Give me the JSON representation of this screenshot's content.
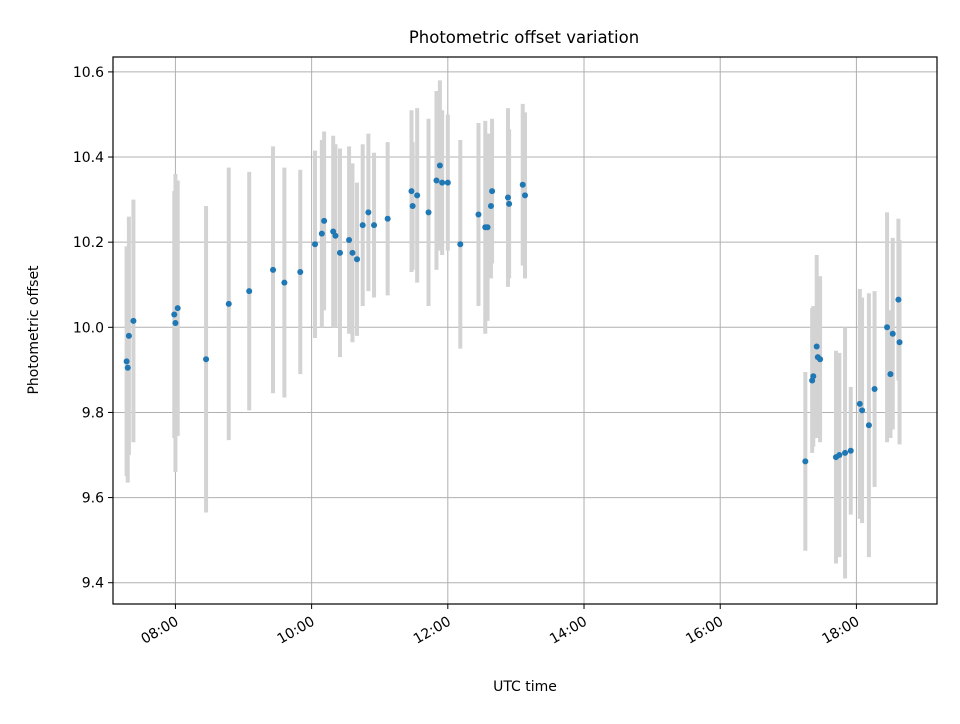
{
  "chart_data": {
    "type": "scatter",
    "title": "Photometric offset variation",
    "xlabel": "UTC time",
    "ylabel": "Photometric offset",
    "x_axis": "time (UTC, HH:MM)",
    "xlim": [
      "07:05",
      "19:11"
    ],
    "ylim": [
      9.35,
      10.635
    ],
    "xticks": [
      "08:00",
      "10:00",
      "12:00",
      "14:00",
      "16:00",
      "18:00"
    ],
    "yticks": [
      9.4,
      9.6,
      9.8,
      10.0,
      10.2,
      10.4,
      10.6
    ],
    "grid": true,
    "colors": {
      "points": "#1f77b4",
      "errorbars": "#d3d3d3",
      "grid": "#b0b0b0"
    },
    "series": [
      {
        "points": [
          {
            "x": "07:17",
            "y": 9.92,
            "yerr": 0.27
          },
          {
            "x": "07:18",
            "y": 9.905,
            "yerr": 0.27
          },
          {
            "x": "07:19",
            "y": 9.98,
            "yerr": 0.28
          },
          {
            "x": "07:23",
            "y": 10.015,
            "yerr": 0.285
          },
          {
            "x": "07:59",
            "y": 10.03,
            "yerr": 0.29
          },
          {
            "x": "08:00",
            "y": 10.01,
            "yerr": 0.35
          },
          {
            "x": "08:02",
            "y": 10.045,
            "yerr": 0.3
          },
          {
            "x": "08:27",
            "y": 9.925,
            "yerr": 0.36
          },
          {
            "x": "08:47",
            "y": 10.055,
            "yerr": 0.32
          },
          {
            "x": "09:05",
            "y": 10.085,
            "yerr": 0.28
          },
          {
            "x": "09:26",
            "y": 10.135,
            "yerr": 0.29
          },
          {
            "x": "09:36",
            "y": 10.105,
            "yerr": 0.27
          },
          {
            "x": "09:50",
            "y": 10.13,
            "yerr": 0.24
          },
          {
            "x": "10:03",
            "y": 10.195,
            "yerr": 0.22
          },
          {
            "x": "10:09",
            "y": 10.22,
            "yerr": 0.22
          },
          {
            "x": "10:11",
            "y": 10.25,
            "yerr": 0.21
          },
          {
            "x": "10:19",
            "y": 10.225,
            "yerr": 0.225
          },
          {
            "x": "10:21",
            "y": 10.215,
            "yerr": 0.215
          },
          {
            "x": "10:25",
            "y": 10.175,
            "yerr": 0.245
          },
          {
            "x": "10:33",
            "y": 10.205,
            "yerr": 0.22
          },
          {
            "x": "10:36",
            "y": 10.175,
            "yerr": 0.21
          },
          {
            "x": "10:40",
            "y": 10.16,
            "yerr": 0.18
          },
          {
            "x": "10:45",
            "y": 10.24,
            "yerr": 0.19
          },
          {
            "x": "10:50",
            "y": 10.27,
            "yerr": 0.185
          },
          {
            "x": "10:55",
            "y": 10.24,
            "yerr": 0.17
          },
          {
            "x": "11:07",
            "y": 10.255,
            "yerr": 0.18
          },
          {
            "x": "11:28",
            "y": 10.32,
            "yerr": 0.19
          },
          {
            "x": "11:29",
            "y": 10.285,
            "yerr": 0.15
          },
          {
            "x": "11:33",
            "y": 10.31,
            "yerr": 0.205
          },
          {
            "x": "11:43",
            "y": 10.27,
            "yerr": 0.22
          },
          {
            "x": "11:50",
            "y": 10.345,
            "yerr": 0.21
          },
          {
            "x": "11:53",
            "y": 10.38,
            "yerr": 0.2
          },
          {
            "x": "11:55",
            "y": 10.34,
            "yerr": 0.17
          },
          {
            "x": "12:00",
            "y": 10.34,
            "yerr": 0.16
          },
          {
            "x": "12:11",
            "y": 10.195,
            "yerr": 0.245
          },
          {
            "x": "12:27",
            "y": 10.265,
            "yerr": 0.215
          },
          {
            "x": "12:33",
            "y": 10.235,
            "yerr": 0.25
          },
          {
            "x": "12:35",
            "y": 10.235,
            "yerr": 0.22
          },
          {
            "x": "12:38",
            "y": 10.285,
            "yerr": 0.17
          },
          {
            "x": "12:39",
            "y": 10.32,
            "yerr": 0.17
          },
          {
            "x": "12:53",
            "y": 10.305,
            "yerr": 0.21
          },
          {
            "x": "12:54",
            "y": 10.29,
            "yerr": 0.175
          },
          {
            "x": "13:06",
            "y": 10.335,
            "yerr": 0.19
          },
          {
            "x": "13:08",
            "y": 10.31,
            "yerr": 0.195
          },
          {
            "x": "17:15",
            "y": 9.685,
            "yerr": 0.21
          },
          {
            "x": "17:21",
            "y": 9.875,
            "yerr": 0.17
          },
          {
            "x": "17:22",
            "y": 9.885,
            "yerr": 0.165
          },
          {
            "x": "17:25",
            "y": 9.955,
            "yerr": 0.215
          },
          {
            "x": "17:26",
            "y": 9.93,
            "yerr": 0.19
          },
          {
            "x": "17:28",
            "y": 9.925,
            "yerr": 0.195
          },
          {
            "x": "17:42",
            "y": 9.695,
            "yerr": 0.25
          },
          {
            "x": "17:45",
            "y": 9.7,
            "yerr": 0.24
          },
          {
            "x": "17:50",
            "y": 9.705,
            "yerr": 0.295
          },
          {
            "x": "17:55",
            "y": 9.71,
            "yerr": 0.15
          },
          {
            "x": "18:03",
            "y": 9.82,
            "yerr": 0.27
          },
          {
            "x": "18:05",
            "y": 9.805,
            "yerr": 0.265
          },
          {
            "x": "18:11",
            "y": 9.77,
            "yerr": 0.31
          },
          {
            "x": "18:16",
            "y": 9.855,
            "yerr": 0.23
          },
          {
            "x": "18:27",
            "y": 10.0,
            "yerr": 0.27
          },
          {
            "x": "18:30",
            "y": 9.89,
            "yerr": 0.15
          },
          {
            "x": "18:32",
            "y": 9.985,
            "yerr": 0.225
          },
          {
            "x": "18:37",
            "y": 10.065,
            "yerr": 0.19
          },
          {
            "x": "18:38",
            "y": 9.965,
            "yerr": 0.24
          }
        ]
      }
    ]
  }
}
